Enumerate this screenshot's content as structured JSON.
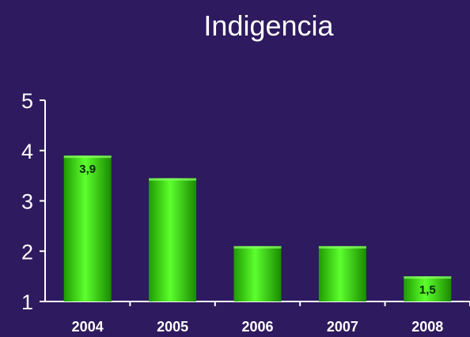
{
  "chart_data": {
    "type": "bar",
    "title": "Indigencia",
    "categories": [
      "2004",
      "2005",
      "2006",
      "2007",
      "2008"
    ],
    "values": [
      3.9,
      3.45,
      2.1,
      2.1,
      1.5
    ],
    "data_labels": [
      "3,9",
      "",
      "",
      "",
      "1,5"
    ],
    "ylim": [
      1,
      5
    ],
    "yticks": [
      "1",
      "2",
      "3",
      "4",
      "5"
    ],
    "xlabel": "",
    "ylabel": "",
    "grid": false,
    "legend": "none",
    "colors": {
      "background": "#2e1a5e",
      "bar_dark": "#1f9c00",
      "bar_light": "#5cff2e",
      "axis": "#ffffff",
      "text": "#ffffff"
    }
  }
}
